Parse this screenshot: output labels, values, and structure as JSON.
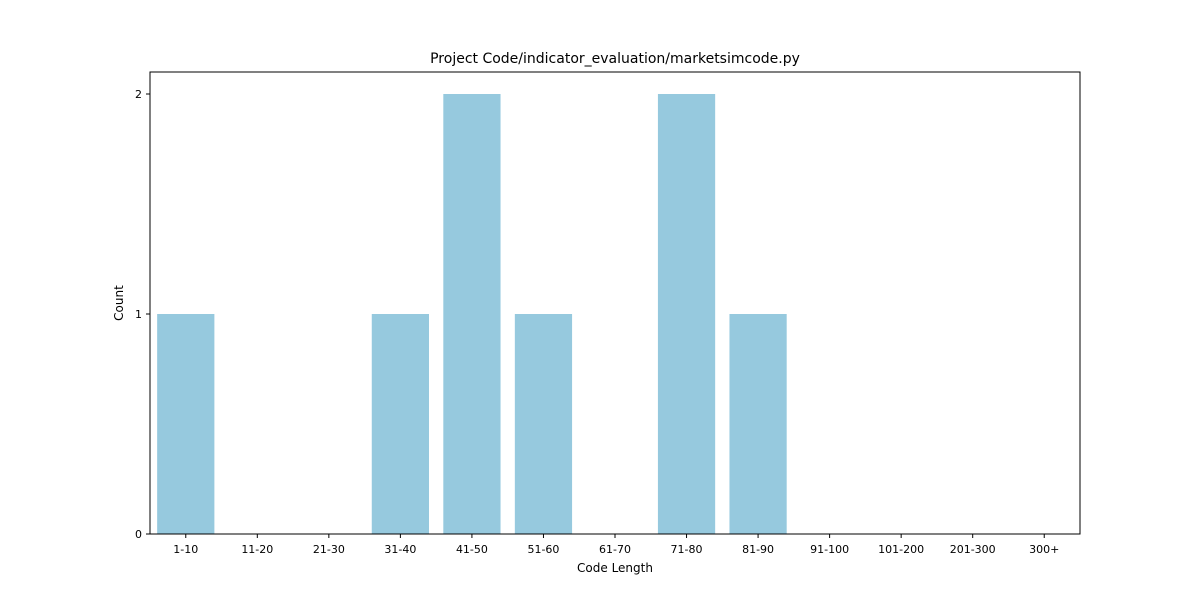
{
  "chart_data": {
    "type": "bar",
    "title": "Project Code/indicator_evaluation/marketsimcode.py",
    "xlabel": "Code Length",
    "ylabel": "Count",
    "categories": [
      "1-10",
      "11-20",
      "21-30",
      "31-40",
      "41-50",
      "51-60",
      "61-70",
      "71-80",
      "81-90",
      "91-100",
      "101-200",
      "201-300",
      "300+"
    ],
    "values": [
      1,
      0,
      0,
      1,
      2,
      1,
      0,
      2,
      1,
      0,
      0,
      0,
      0
    ],
    "ylim": [
      0,
      2.1
    ],
    "yticks": [
      0,
      1,
      2
    ],
    "bar_color": "#96c9de",
    "grid": false,
    "legend": "none"
  }
}
